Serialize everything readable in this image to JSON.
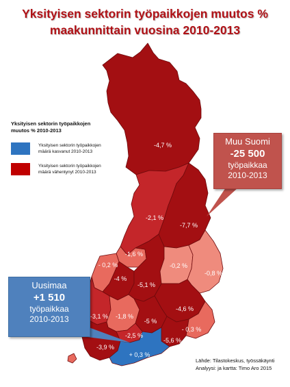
{
  "title": {
    "line1": "Yksityisen sektorin työpaikkojen muutos %",
    "line2": "maakunnittain vuosina 2010-2013"
  },
  "legend": {
    "title_line1": "Yksityisen sektorin työpaikkojen",
    "title_line2": "muutos % 2010-2013",
    "items": [
      {
        "line1": "Yksityisen sektorin työpaikkojen",
        "line2": "määrä kasvanut 2010-2013",
        "color": "#2e74c0"
      },
      {
        "line1": "Yksityisen sektorin työpaikkojen",
        "line2": "määrä vähentynyt 2010-2013",
        "color": "#c00000"
      }
    ]
  },
  "callouts": {
    "muu_suomi": {
      "line1": "Muu Suomi",
      "line2": "-25 500",
      "line3": "työpaikkaa",
      "line4": "2010-2013"
    },
    "uusimaa": {
      "line1": "Uusimaa",
      "line2": "+1 510",
      "line3": "työpaikkaa",
      "line4": "2010-2013"
    }
  },
  "region_labels": {
    "lappi": "-4,7 %",
    "pohjois_pohjanmaa": "-2,1 %",
    "kainuu": "-7,7 %",
    "keski_pohjanmaa": "-1,6 %",
    "pohjanmaa": "- 0,2 %",
    "etela_pohjanmaa": "-4 %",
    "keski_suomi": "-5,1 %",
    "pohjois_savo": "-0,2 %",
    "pohjois_karjala": "-0,8 %",
    "satakunta": "-3,1 %",
    "pirkanmaa": "-1,8 %",
    "etela_savo": "-4,6 %",
    "paijat_hame": "-5 %",
    "kanta_hame": "-2,5 %",
    "etela_karjala": "- 0,3 %",
    "kymenlaakso": "-5,6 %",
    "varsinais_suomi": "-3,9 %",
    "uusimaa": "+ 0,3 %"
  },
  "colors": {
    "dark_red": "#a30f12",
    "mid_red": "#c4262a",
    "light_red": "#e86a5e",
    "pale_red": "#ef8b7d",
    "blue": "#2e74c0",
    "title": "#b01217"
  },
  "source": {
    "line1": "Lähde: Tilastokeskus, työssäkäynti",
    "line2": "Analyysi: ja kartta: Timo Aro 2015"
  }
}
